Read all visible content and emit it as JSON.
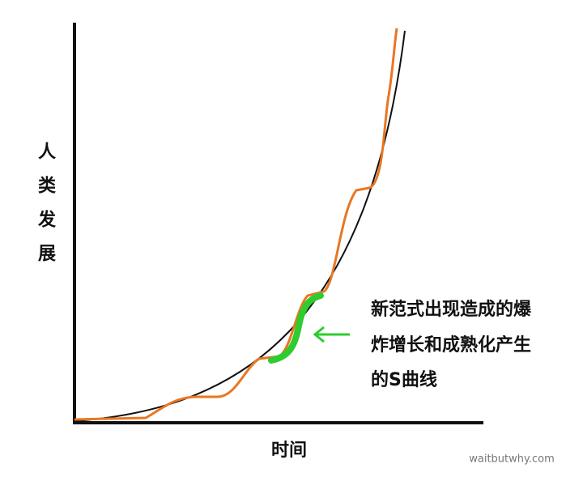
{
  "axes": {
    "y_label": "人类发展",
    "x_label": "时间"
  },
  "annotation": {
    "lines": [
      "新范式出现造成的爆",
      "炸增长和成熟化产生",
      "的S曲线"
    ]
  },
  "watermark": "waitbutwhy.com"
}
